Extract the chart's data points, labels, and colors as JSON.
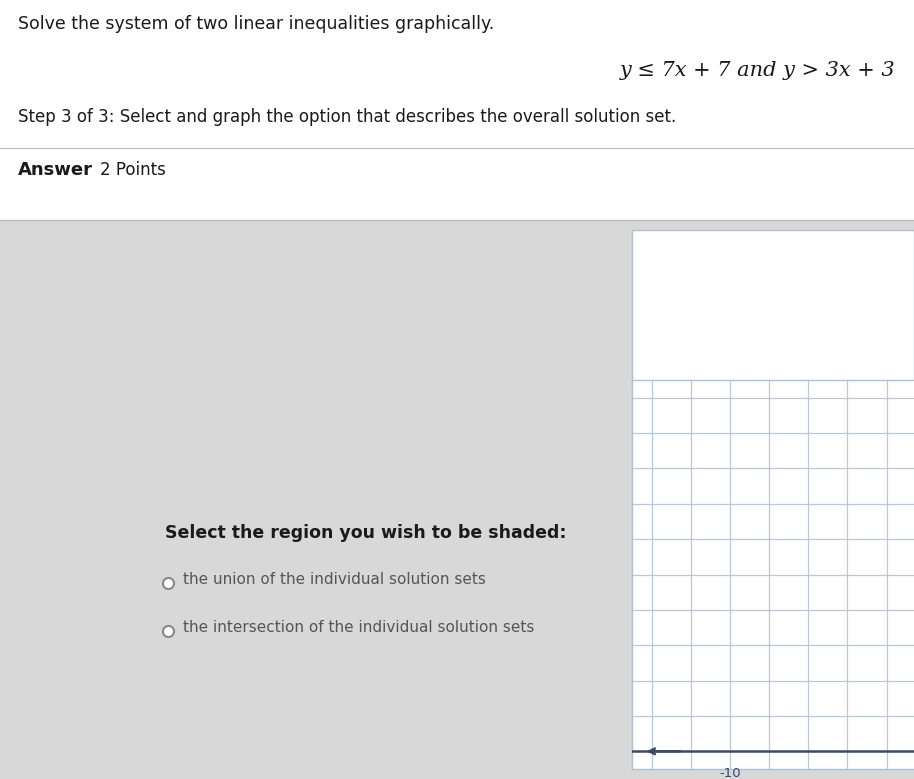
{
  "bg_color": "#d8d8d8",
  "top_panel_color": "#ffffff",
  "bottom_panel_color": "#d8d8d8",
  "title_line1": "Solve the system of two linear inequalities graphically.",
  "inequality1": "y ≤ 7x + 7 and y > 3x + 3",
  "step_text": "Step 3 of 3: Select and graph the option that describes the overall solution set.",
  "answer_label": "Answer",
  "points_label": "2 Points",
  "select_text": "Select the region you wish to be shaded:",
  "option1": "the union of the individual solution sets",
  "option2": "the intersection of the individual solution sets",
  "grid_color": "#b8c8d8",
  "axis_color": "#3a4a6a",
  "tick_label_color": "#3a4a6a",
  "outer_box_color": "#b0c0d0",
  "divider_color": "#bbbbbb",
  "text_color_dark": "#1a1a1a",
  "text_color_option": "#555555"
}
